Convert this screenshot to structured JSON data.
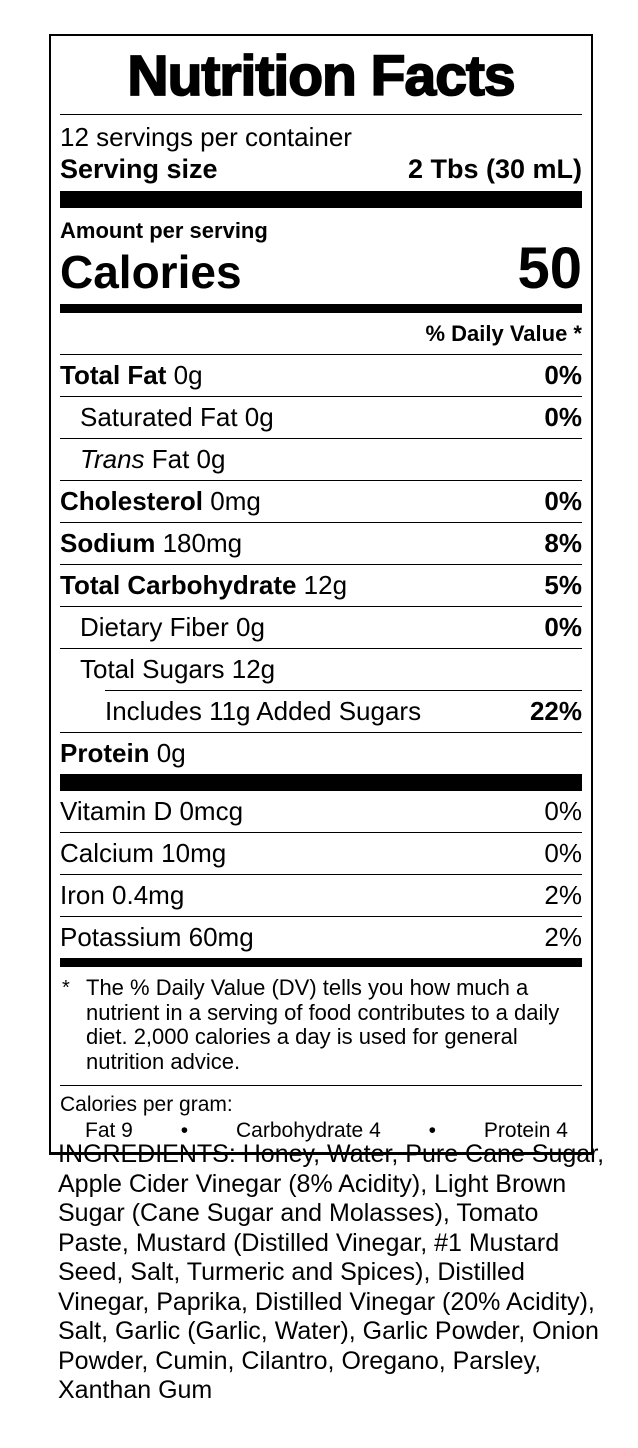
{
  "label": {
    "title": "Nutrition Facts",
    "servings_per_container": "12 servings per container",
    "serving_size": {
      "label": "Serving size",
      "value": "2 Tbs (30 mL)"
    },
    "amount_per_serving": "Amount per serving",
    "calories": {
      "label": "Calories",
      "value": "50"
    },
    "daily_value_header": "% Daily Value *",
    "nutrients": [
      {
        "id": "total-fat",
        "name": "Total Fat",
        "amount": "0g",
        "dv": "0%",
        "name_bold": true,
        "dv_bold": true,
        "indent": 0
      },
      {
        "id": "saturated-fat",
        "name": "Saturated Fat",
        "amount": "0g",
        "dv": "0%",
        "name_bold": false,
        "dv_bold": true,
        "indent": 1
      },
      {
        "id": "trans-fat",
        "italic_prefix": "Trans",
        "name": " Fat",
        "amount": "0g",
        "dv": "",
        "name_bold": false,
        "dv_bold": false,
        "indent": 1
      },
      {
        "id": "cholesterol",
        "name": "Cholesterol",
        "amount": "0mg",
        "dv": "0%",
        "name_bold": true,
        "dv_bold": true,
        "indent": 0
      },
      {
        "id": "sodium",
        "name": "Sodium",
        "amount": "180mg",
        "dv": "8%",
        "name_bold": true,
        "dv_bold": true,
        "indent": 0
      },
      {
        "id": "total-carbohydrate",
        "name": "Total Carbohydrate",
        "amount": "12g",
        "dv": "5%",
        "name_bold": true,
        "dv_bold": true,
        "indent": 0
      },
      {
        "id": "dietary-fiber",
        "name": "Dietary Fiber",
        "amount": "0g",
        "dv": "0%",
        "name_bold": false,
        "dv_bold": true,
        "indent": 1
      },
      {
        "id": "total-sugars",
        "name": "Total Sugars",
        "amount": "12g",
        "dv": "",
        "name_bold": false,
        "dv_bold": false,
        "indent": 1
      },
      {
        "id": "added-sugars",
        "name": "Includes 11g Added Sugars",
        "amount": "",
        "dv": "22%",
        "name_bold": false,
        "dv_bold": true,
        "indent": 2
      },
      {
        "id": "protein",
        "name": "Protein",
        "amount": "0g",
        "dv": "",
        "name_bold": true,
        "dv_bold": false,
        "indent": 0
      }
    ],
    "vitamins": [
      {
        "id": "vitamin-d",
        "name": "Vitamin D",
        "amount": "0mcg",
        "dv": "0%",
        "name_bold": false,
        "dv_bold": false,
        "indent": 0
      },
      {
        "id": "calcium",
        "name": "Calcium",
        "amount": "10mg",
        "dv": "0%",
        "name_bold": false,
        "dv_bold": false,
        "indent": 0
      },
      {
        "id": "iron",
        "name": "Iron",
        "amount": "0.4mg",
        "dv": "2%",
        "name_bold": false,
        "dv_bold": false,
        "indent": 0
      },
      {
        "id": "potassium",
        "name": "Potassium",
        "amount": "60mg",
        "dv": "2%",
        "name_bold": false,
        "dv_bold": false,
        "indent": 0
      }
    ],
    "footnote": {
      "marker": "*",
      "text": "The % Daily Value (DV) tells you how much a nutrient in a serving of food contributes to a daily diet. 2,000 calories a day is used for general nutrition advice."
    },
    "calories_per_gram": {
      "label": "Calories per gram:",
      "items": [
        "Fat 9",
        "Carbohydrate 4",
        "Protein 4"
      ],
      "separator": "•"
    }
  },
  "ingredients": "INGREDIENTS: Honey, Water, Pure Cane Sugar, Apple Cider Vinegar (8% Acidity), Light Brown Sugar (Cane Sugar and Molasses), Tomato Paste, Mustard (Distilled Vinegar, #1 Mustard Seed, Salt, Turmeric and Spices), Distilled Vinegar, Paprika, Distilled Vinegar (20% Acidity), Salt, Garlic (Garlic, Water), Garlic Powder, Onion Powder, Cumin, Cilantro, Oregano, Parsley, Xanthan Gum",
  "colors": {
    "ink": "#000000",
    "background": "#ffffff"
  }
}
